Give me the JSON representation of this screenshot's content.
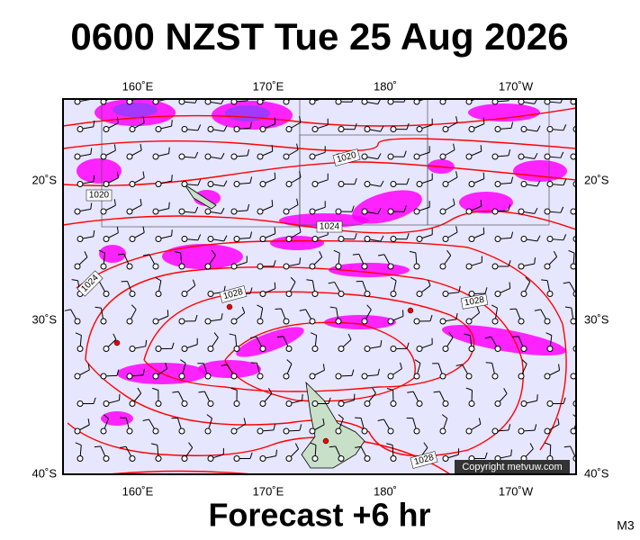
{
  "header": {
    "title": "0600 NZST Tue 25 Aug 2026"
  },
  "map": {
    "lon_labels": [
      "160˚E",
      "170˚E",
      "180˚",
      "170˚W"
    ],
    "lat_labels": [
      "20˚S",
      "30˚S",
      "40˚S"
    ],
    "isobar_labels": [
      "1020",
      "1020",
      "1024",
      "1024",
      "1028",
      "1028",
      "1028"
    ],
    "copyright": "Copyright metvuw.com"
  },
  "footer": {
    "forecast": "Forecast +6 hr",
    "model": "M3"
  }
}
